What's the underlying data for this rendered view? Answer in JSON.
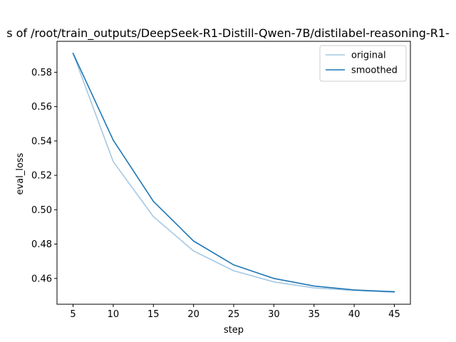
{
  "chart_data": {
    "type": "line",
    "title": "s of /root/train_outputs/DeepSeek-R1-Distill-Qwen-7B/distilabel-reasoning-R1-",
    "xlabel": "step",
    "ylabel": "eval_loss",
    "xlim": [
      3,
      47
    ],
    "ylim": [
      0.445,
      0.598
    ],
    "xticks": [
      5,
      10,
      15,
      20,
      25,
      30,
      35,
      40,
      45
    ],
    "yticks": [
      0.46,
      0.48,
      0.5,
      0.52,
      0.54,
      0.56,
      0.58
    ],
    "grid": false,
    "legend_position": "top-right",
    "x": [
      5,
      10,
      15,
      20,
      25,
      30,
      35,
      40,
      45
    ],
    "series": [
      {
        "name": "original",
        "color": "#a6c8e3",
        "values": [
          0.591,
          0.528,
          0.496,
          0.476,
          0.4645,
          0.458,
          0.4545,
          0.453,
          0.452
        ]
      },
      {
        "name": "smoothed",
        "color": "#1f77b4",
        "values": [
          0.591,
          0.5405,
          0.5049,
          0.4818,
          0.4679,
          0.46,
          0.4556,
          0.4533,
          0.4523
        ]
      }
    ]
  }
}
